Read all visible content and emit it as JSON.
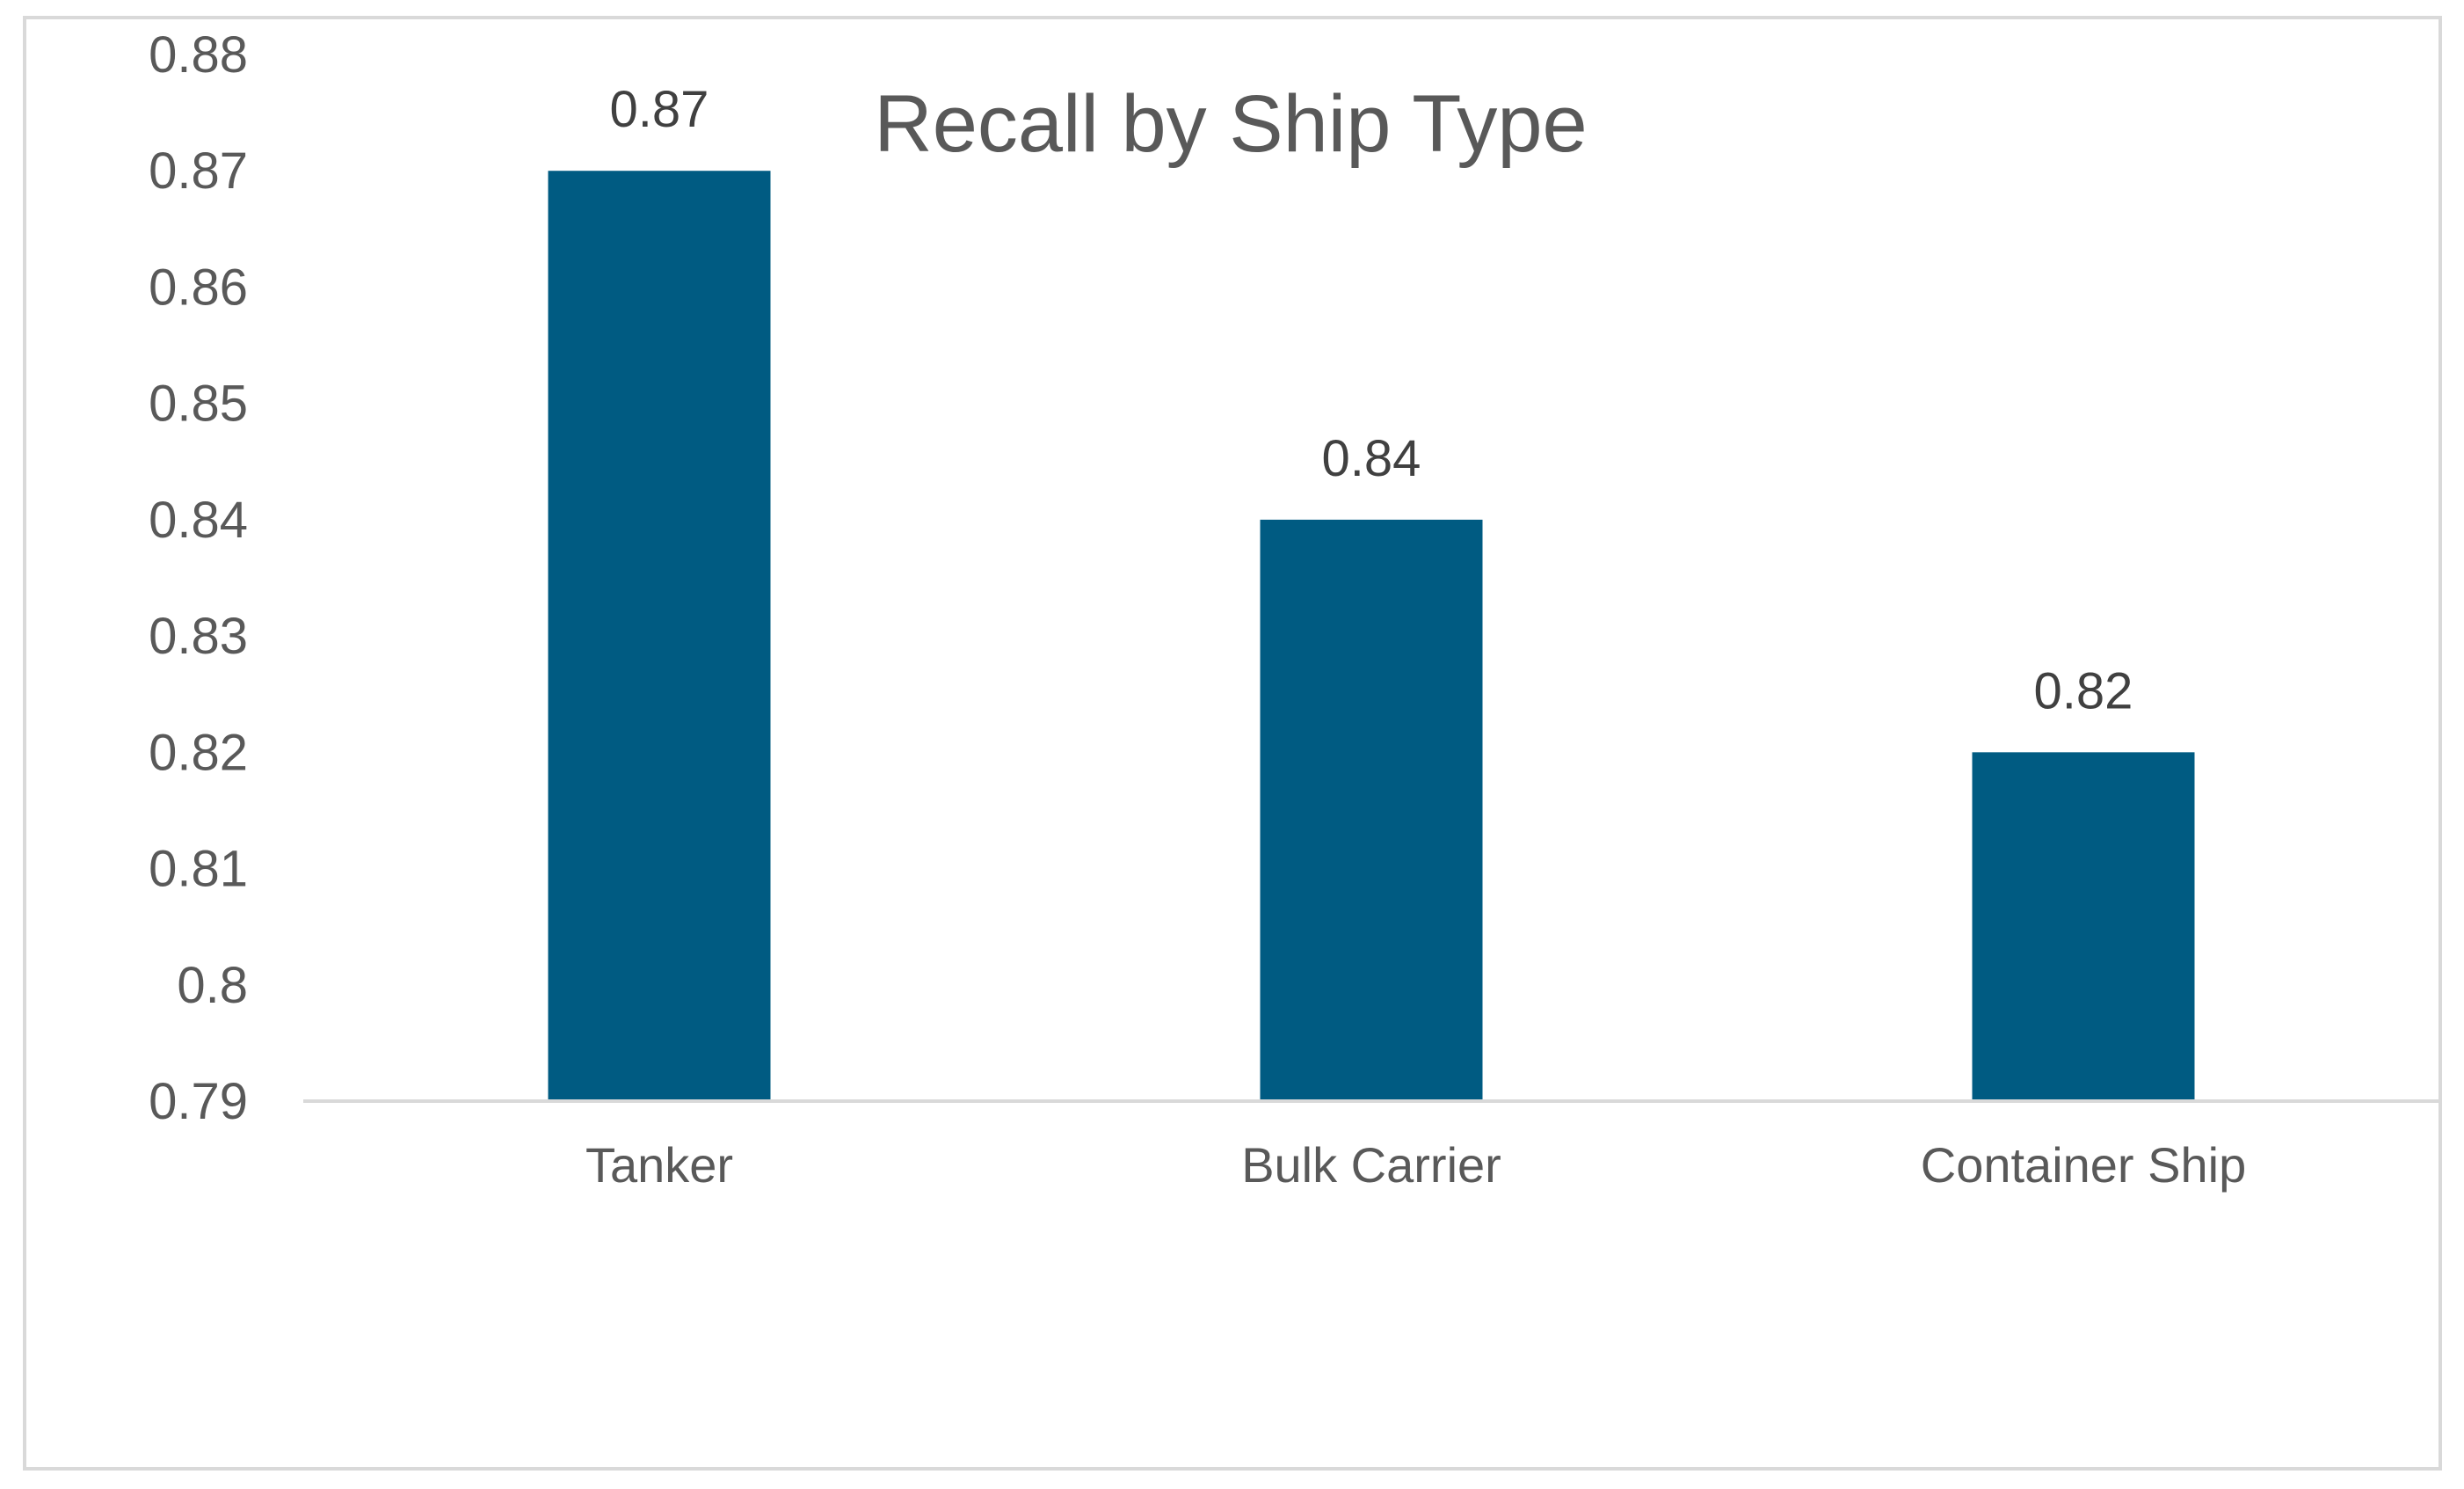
{
  "chart_data": {
    "type": "bar",
    "title": "Recall by Ship Type",
    "xlabel": "",
    "ylabel": "",
    "categories": [
      "Tanker",
      "Bulk Carrier",
      "Container Ship"
    ],
    "values": [
      0.87,
      0.84,
      0.82
    ],
    "data_labels": [
      "0.87",
      "0.84",
      "0.82"
    ],
    "ylim": [
      0.79,
      0.88
    ],
    "y_ticks": [
      0.79,
      0.8,
      0.81,
      0.82,
      0.83,
      0.84,
      0.85,
      0.86,
      0.87,
      0.88
    ],
    "y_tick_labels": [
      "0.79",
      "0.8",
      "0.81",
      "0.82",
      "0.83",
      "0.84",
      "0.85",
      "0.86",
      "0.87",
      "0.88"
    ],
    "grid": false,
    "legend": "none",
    "bar_color": "#005B82",
    "axis_color": "#d9d9d9"
  }
}
